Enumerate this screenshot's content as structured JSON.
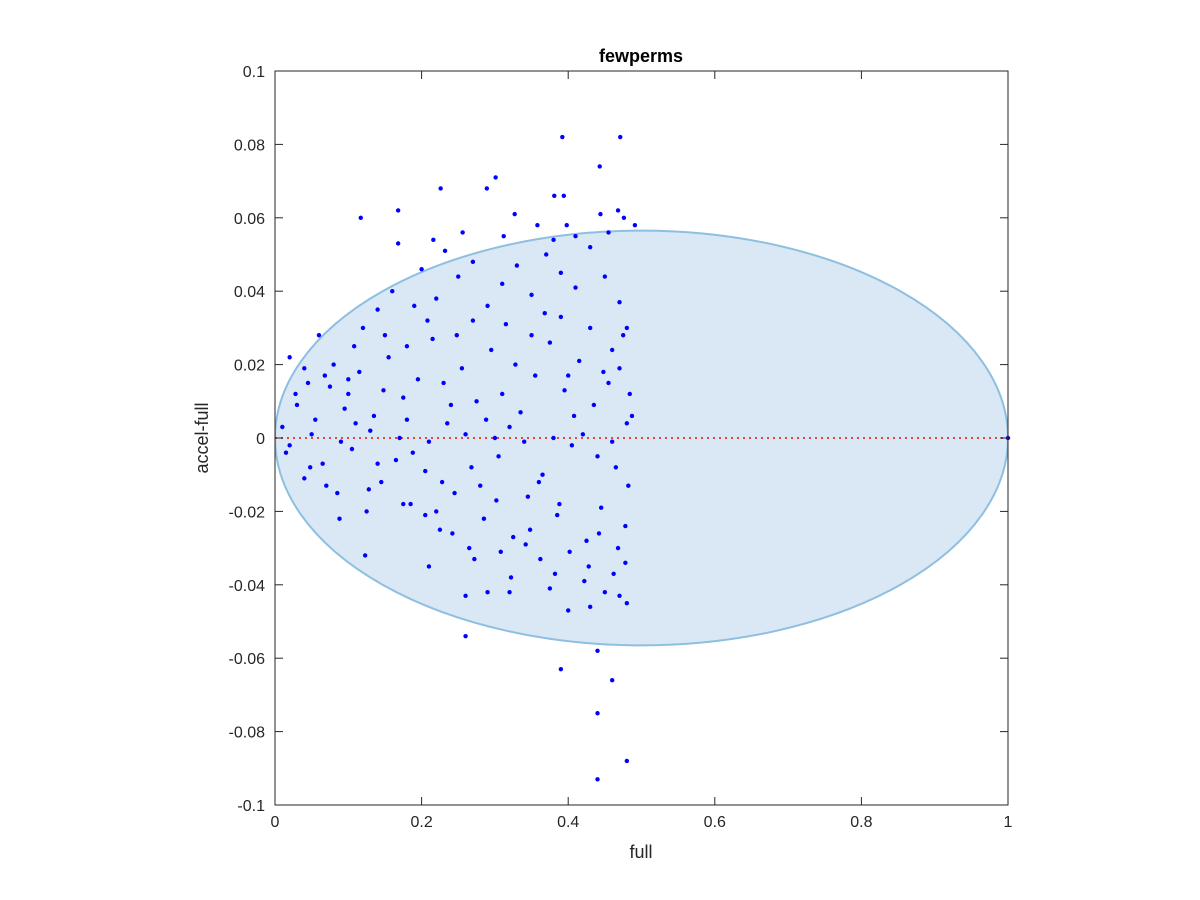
{
  "chart_data": {
    "type": "scatter",
    "title": "fewperms",
    "xlabel": "full",
    "ylabel": "accel-full",
    "xlim": [
      0,
      1
    ],
    "ylim": [
      -0.1,
      0.1
    ],
    "xticks": [
      "0",
      "0.2",
      "0.4",
      "0.6",
      "0.8",
      "1"
    ],
    "yticks": [
      "-0.1",
      "-0.08",
      "-0.06",
      "-0.04",
      "-0.02",
      "0",
      "0.02",
      "0.04",
      "0.06",
      "0.08",
      "0.1"
    ],
    "grid": false,
    "reference_line": {
      "y": 0,
      "style": "dotted",
      "color": "#e8443a"
    },
    "region": {
      "shape": "ellipse",
      "center_x": 0.5,
      "center_y": 0,
      "radius_x": 0.5,
      "radius_y": 0.0565,
      "fill": "#d9e8f4",
      "stroke": "#8fbfe0"
    },
    "marker_color": "#0000ff",
    "points": [
      [
        0.392,
        0.082
      ],
      [
        0.471,
        0.082
      ],
      [
        0.443,
        0.074
      ],
      [
        0.301,
        0.071
      ],
      [
        0.289,
        0.068
      ],
      [
        0.226,
        0.068
      ],
      [
        0.381,
        0.066
      ],
      [
        0.394,
        0.066
      ],
      [
        0.117,
        0.06
      ],
      [
        0.168,
        0.062
      ],
      [
        0.256,
        0.056
      ],
      [
        0.216,
        0.054
      ],
      [
        0.327,
        0.061
      ],
      [
        0.444,
        0.061
      ],
      [
        0.468,
        0.062
      ],
      [
        0.476,
        0.06
      ],
      [
        0.491,
        0.058
      ],
      [
        0.398,
        0.058
      ],
      [
        0.358,
        0.058
      ],
      [
        0.232,
        0.051
      ],
      [
        0.312,
        0.055
      ],
      [
        0.168,
        0.053
      ],
      [
        0.38,
        0.054
      ],
      [
        0.41,
        0.055
      ],
      [
        0.455,
        0.056
      ],
      [
        0.02,
        0.022
      ],
      [
        0.045,
        0.015
      ],
      [
        0.06,
        0.028
      ],
      [
        0.08,
        0.02
      ],
      [
        0.1,
        0.012
      ],
      [
        0.12,
        0.03
      ],
      [
        0.14,
        0.035
      ],
      [
        0.16,
        0.04
      ],
      [
        0.18,
        0.025
      ],
      [
        0.2,
        0.046
      ],
      [
        0.22,
        0.038
      ],
      [
        0.25,
        0.044
      ],
      [
        0.27,
        0.048
      ],
      [
        0.29,
        0.036
      ],
      [
        0.31,
        0.042
      ],
      [
        0.33,
        0.047
      ],
      [
        0.35,
        0.039
      ],
      [
        0.37,
        0.05
      ],
      [
        0.39,
        0.045
      ],
      [
        0.41,
        0.041
      ],
      [
        0.43,
        0.052
      ],
      [
        0.45,
        0.044
      ],
      [
        0.47,
        0.037
      ],
      [
        0.48,
        0.03
      ],
      [
        0.46,
        0.024
      ],
      [
        0.01,
        0.003
      ],
      [
        0.015,
        -0.004
      ],
      [
        0.03,
        0.009
      ],
      [
        0.04,
        -0.011
      ],
      [
        0.055,
        0.005
      ],
      [
        0.065,
        -0.007
      ],
      [
        0.075,
        0.014
      ],
      [
        0.085,
        -0.015
      ],
      [
        0.095,
        0.008
      ],
      [
        0.105,
        -0.003
      ],
      [
        0.115,
        0.018
      ],
      [
        0.125,
        -0.02
      ],
      [
        0.135,
        0.006
      ],
      [
        0.145,
        -0.012
      ],
      [
        0.155,
        0.022
      ],
      [
        0.165,
        -0.006
      ],
      [
        0.175,
        0.011
      ],
      [
        0.185,
        -0.018
      ],
      [
        0.195,
        0.016
      ],
      [
        0.205,
        -0.009
      ],
      [
        0.215,
        0.027
      ],
      [
        0.225,
        -0.025
      ],
      [
        0.235,
        0.004
      ],
      [
        0.245,
        -0.015
      ],
      [
        0.255,
        0.019
      ],
      [
        0.265,
        -0.03
      ],
      [
        0.275,
        0.01
      ],
      [
        0.285,
        -0.022
      ],
      [
        0.295,
        0.024
      ],
      [
        0.305,
        -0.005
      ],
      [
        0.315,
        0.031
      ],
      [
        0.325,
        -0.027
      ],
      [
        0.335,
        0.007
      ],
      [
        0.345,
        -0.016
      ],
      [
        0.355,
        0.017
      ],
      [
        0.365,
        -0.01
      ],
      [
        0.375,
        0.026
      ],
      [
        0.385,
        -0.021
      ],
      [
        0.395,
        0.013
      ],
      [
        0.405,
        -0.002
      ],
      [
        0.415,
        0.021
      ],
      [
        0.425,
        -0.028
      ],
      [
        0.435,
        0.009
      ],
      [
        0.445,
        -0.019
      ],
      [
        0.455,
        0.015
      ],
      [
        0.465,
        -0.008
      ],
      [
        0.475,
        0.028
      ],
      [
        0.482,
        -0.013
      ],
      [
        0.487,
        0.006
      ],
      [
        0.478,
        -0.024
      ],
      [
        0.02,
        -0.002
      ],
      [
        0.05,
        0.001
      ],
      [
        0.09,
        -0.001
      ],
      [
        0.13,
        0.002
      ],
      [
        0.17,
        0.0
      ],
      [
        0.21,
        -0.001
      ],
      [
        0.26,
        0.001
      ],
      [
        0.3,
        0.0
      ],
      [
        0.34,
        -0.001
      ],
      [
        0.38,
        0.0
      ],
      [
        0.42,
        0.001
      ],
      [
        0.46,
        -0.001
      ],
      [
        0.028,
        0.012
      ],
      [
        0.048,
        -0.008
      ],
      [
        0.068,
        0.017
      ],
      [
        0.088,
        -0.022
      ],
      [
        0.108,
        0.025
      ],
      [
        0.128,
        -0.014
      ],
      [
        0.148,
        0.013
      ],
      [
        0.188,
        -0.004
      ],
      [
        0.208,
        0.032
      ],
      [
        0.228,
        -0.012
      ],
      [
        0.248,
        0.028
      ],
      [
        0.268,
        -0.008
      ],
      [
        0.288,
        0.005
      ],
      [
        0.308,
        -0.031
      ],
      [
        0.328,
        0.02
      ],
      [
        0.348,
        -0.025
      ],
      [
        0.368,
        0.034
      ],
      [
        0.388,
        -0.018
      ],
      [
        0.408,
        0.006
      ],
      [
        0.428,
        -0.035
      ],
      [
        0.448,
        0.018
      ],
      [
        0.468,
        -0.03
      ],
      [
        0.484,
        0.012
      ],
      [
        0.123,
        -0.032
      ],
      [
        0.21,
        -0.035
      ],
      [
        0.26,
        -0.043
      ],
      [
        0.29,
        -0.042
      ],
      [
        0.32,
        -0.042
      ],
      [
        0.375,
        -0.041
      ],
      [
        0.4,
        -0.047
      ],
      [
        0.43,
        -0.046
      ],
      [
        0.45,
        -0.042
      ],
      [
        0.47,
        -0.043
      ],
      [
        0.48,
        -0.045
      ],
      [
        0.26,
        -0.054
      ],
      [
        0.44,
        -0.058
      ],
      [
        0.39,
        -0.063
      ],
      [
        0.46,
        -0.066
      ],
      [
        0.44,
        -0.075
      ],
      [
        0.48,
        -0.088
      ],
      [
        0.44,
        -0.093
      ],
      [
        0.175,
        -0.018
      ],
      [
        0.205,
        -0.021
      ],
      [
        0.242,
        -0.026
      ],
      [
        0.272,
        -0.033
      ],
      [
        0.302,
        -0.017
      ],
      [
        0.322,
        -0.038
      ],
      [
        0.342,
        -0.029
      ],
      [
        0.362,
        -0.033
      ],
      [
        0.382,
        -0.037
      ],
      [
        0.402,
        -0.031
      ],
      [
        0.422,
        -0.039
      ],
      [
        0.442,
        -0.026
      ],
      [
        0.462,
        -0.037
      ],
      [
        0.478,
        -0.034
      ],
      [
        0.11,
        0.004
      ],
      [
        0.15,
        0.028
      ],
      [
        0.19,
        0.036
      ],
      [
        0.23,
        0.015
      ],
      [
        0.27,
        0.032
      ],
      [
        0.31,
        0.012
      ],
      [
        0.35,
        0.028
      ],
      [
        0.39,
        0.033
      ],
      [
        0.43,
        0.03
      ],
      [
        0.47,
        0.019
      ],
      [
        0.04,
        0.019
      ],
      [
        0.07,
        -0.013
      ],
      [
        0.1,
        0.016
      ],
      [
        0.14,
        -0.007
      ],
      [
        0.18,
        0.005
      ],
      [
        0.22,
        -0.02
      ],
      [
        0.24,
        0.009
      ],
      [
        0.28,
        -0.013
      ],
      [
        0.32,
        0.003
      ],
      [
        0.36,
        -0.012
      ],
      [
        0.4,
        0.017
      ],
      [
        0.44,
        -0.005
      ],
      [
        0.48,
        0.004
      ],
      [
        1.0,
        0.0
      ]
    ]
  }
}
